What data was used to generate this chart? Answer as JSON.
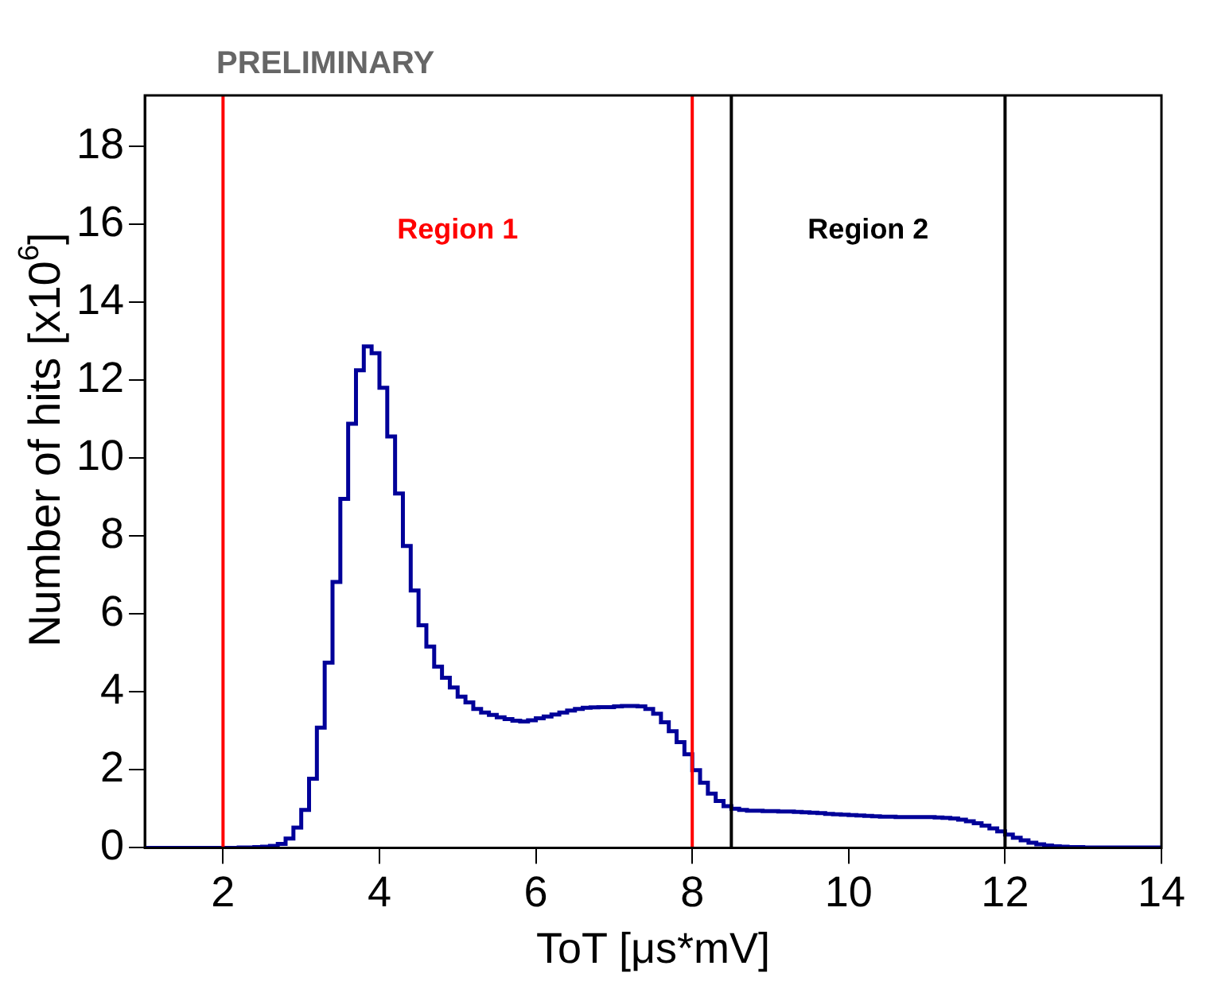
{
  "chart_data": {
    "type": "histogram",
    "annotations": [
      "PRELIMINARY",
      "Region 1",
      "Region 2"
    ],
    "xlabel": "ToT [μs*mV]",
    "ylabel": "Number of hits [x10$^{6}$]",
    "bins": [
      1.0,
      1.1,
      1.2,
      1.3,
      1.4,
      1.5,
      1.6,
      1.7,
      1.8,
      1.9,
      2.0,
      2.1,
      2.2,
      2.3,
      2.4,
      2.5,
      2.6,
      2.7,
      2.8,
      2.9,
      3.0,
      3.1,
      3.2,
      3.3,
      3.4,
      3.5,
      3.6,
      3.7,
      3.8,
      3.9,
      4.0,
      4.1,
      4.2,
      4.3,
      4.4,
      4.5,
      4.6,
      4.7,
      4.8,
      4.9,
      5.0,
      5.1,
      5.2,
      5.3,
      5.4,
      5.5,
      5.6,
      5.7,
      5.8,
      5.9,
      6.0,
      6.1,
      6.2,
      6.3,
      6.4,
      6.5,
      6.6,
      6.7,
      6.8,
      6.9,
      7.0,
      7.1,
      7.2,
      7.3,
      7.4,
      7.5,
      7.6,
      7.7,
      7.8,
      7.9,
      8.0,
      8.1,
      8.2,
      8.3,
      8.4,
      8.5,
      8.6,
      8.7,
      8.8,
      8.9,
      9.0,
      9.1,
      9.2,
      9.3,
      9.4,
      9.5,
      9.6,
      9.7,
      9.8,
      9.9,
      10.0,
      10.1,
      10.2,
      10.3,
      10.4,
      10.5,
      10.6,
      10.7,
      10.8,
      10.9,
      11.0,
      11.1,
      11.2,
      11.3,
      11.4,
      11.5,
      11.6,
      11.7,
      11.8,
      11.9,
      12.0,
      12.1,
      12.2,
      12.3,
      12.4,
      12.5,
      12.6,
      12.7,
      12.8,
      12.9,
      13.0,
      13.1,
      13.2,
      13.3,
      13.4,
      13.5,
      13.6,
      13.7,
      13.8,
      13.9,
      14.0
    ],
    "values": [
      0,
      0,
      0,
      0,
      0,
      0,
      0,
      0,
      0,
      0,
      0,
      0,
      0.01,
      0.01,
      0.02,
      0.03,
      0.05,
      0.1,
      0.24,
      0.52,
      0.97,
      1.77,
      3.08,
      4.75,
      6.82,
      8.95,
      10.88,
      12.25,
      12.86,
      12.69,
      11.8,
      10.55,
      9.09,
      7.74,
      6.6,
      5.71,
      5.16,
      4.65,
      4.36,
      4.11,
      3.88,
      3.73,
      3.56,
      3.47,
      3.41,
      3.35,
      3.3,
      3.26,
      3.24,
      3.27,
      3.32,
      3.37,
      3.42,
      3.47,
      3.52,
      3.56,
      3.59,
      3.6,
      3.61,
      3.61,
      3.63,
      3.64,
      3.64,
      3.63,
      3.56,
      3.44,
      3.22,
      2.99,
      2.71,
      2.4,
      1.99,
      1.67,
      1.39,
      1.2,
      1.07,
      1.0,
      0.97,
      0.95,
      0.95,
      0.94,
      0.94,
      0.93,
      0.93,
      0.92,
      0.91,
      0.9,
      0.89,
      0.87,
      0.86,
      0.85,
      0.84,
      0.83,
      0.82,
      0.81,
      0.8,
      0.8,
      0.79,
      0.79,
      0.79,
      0.79,
      0.79,
      0.78,
      0.77,
      0.75,
      0.72,
      0.68,
      0.63,
      0.57,
      0.5,
      0.42,
      0.34,
      0.26,
      0.19,
      0.13,
      0.09,
      0.06,
      0.04,
      0.03,
      0.02,
      0.02,
      0.01,
      0.01,
      0.01,
      0.01,
      0.01,
      0.01,
      0.01,
      0.01,
      0.01,
      0.01
    ],
    "color": "#000099",
    "xlim": [
      1,
      14
    ],
    "xticks": [
      2,
      4,
      6,
      8,
      10,
      12,
      14
    ],
    "ylim": [
      0,
      19.3
    ],
    "yticks": [
      0,
      2,
      4,
      6,
      8,
      10,
      12,
      14,
      16,
      18
    ],
    "ref_lines": [
      {
        "axis": "x",
        "value": 2,
        "color": "#ff0000"
      },
      {
        "axis": "x",
        "value": 8,
        "color": "#ff0000"
      },
      {
        "axis": "x",
        "value": 8.5,
        "color": "#000000"
      },
      {
        "axis": "x",
        "value": 12,
        "color": "#000000"
      }
    ],
    "grid": false,
    "legend": false
  }
}
